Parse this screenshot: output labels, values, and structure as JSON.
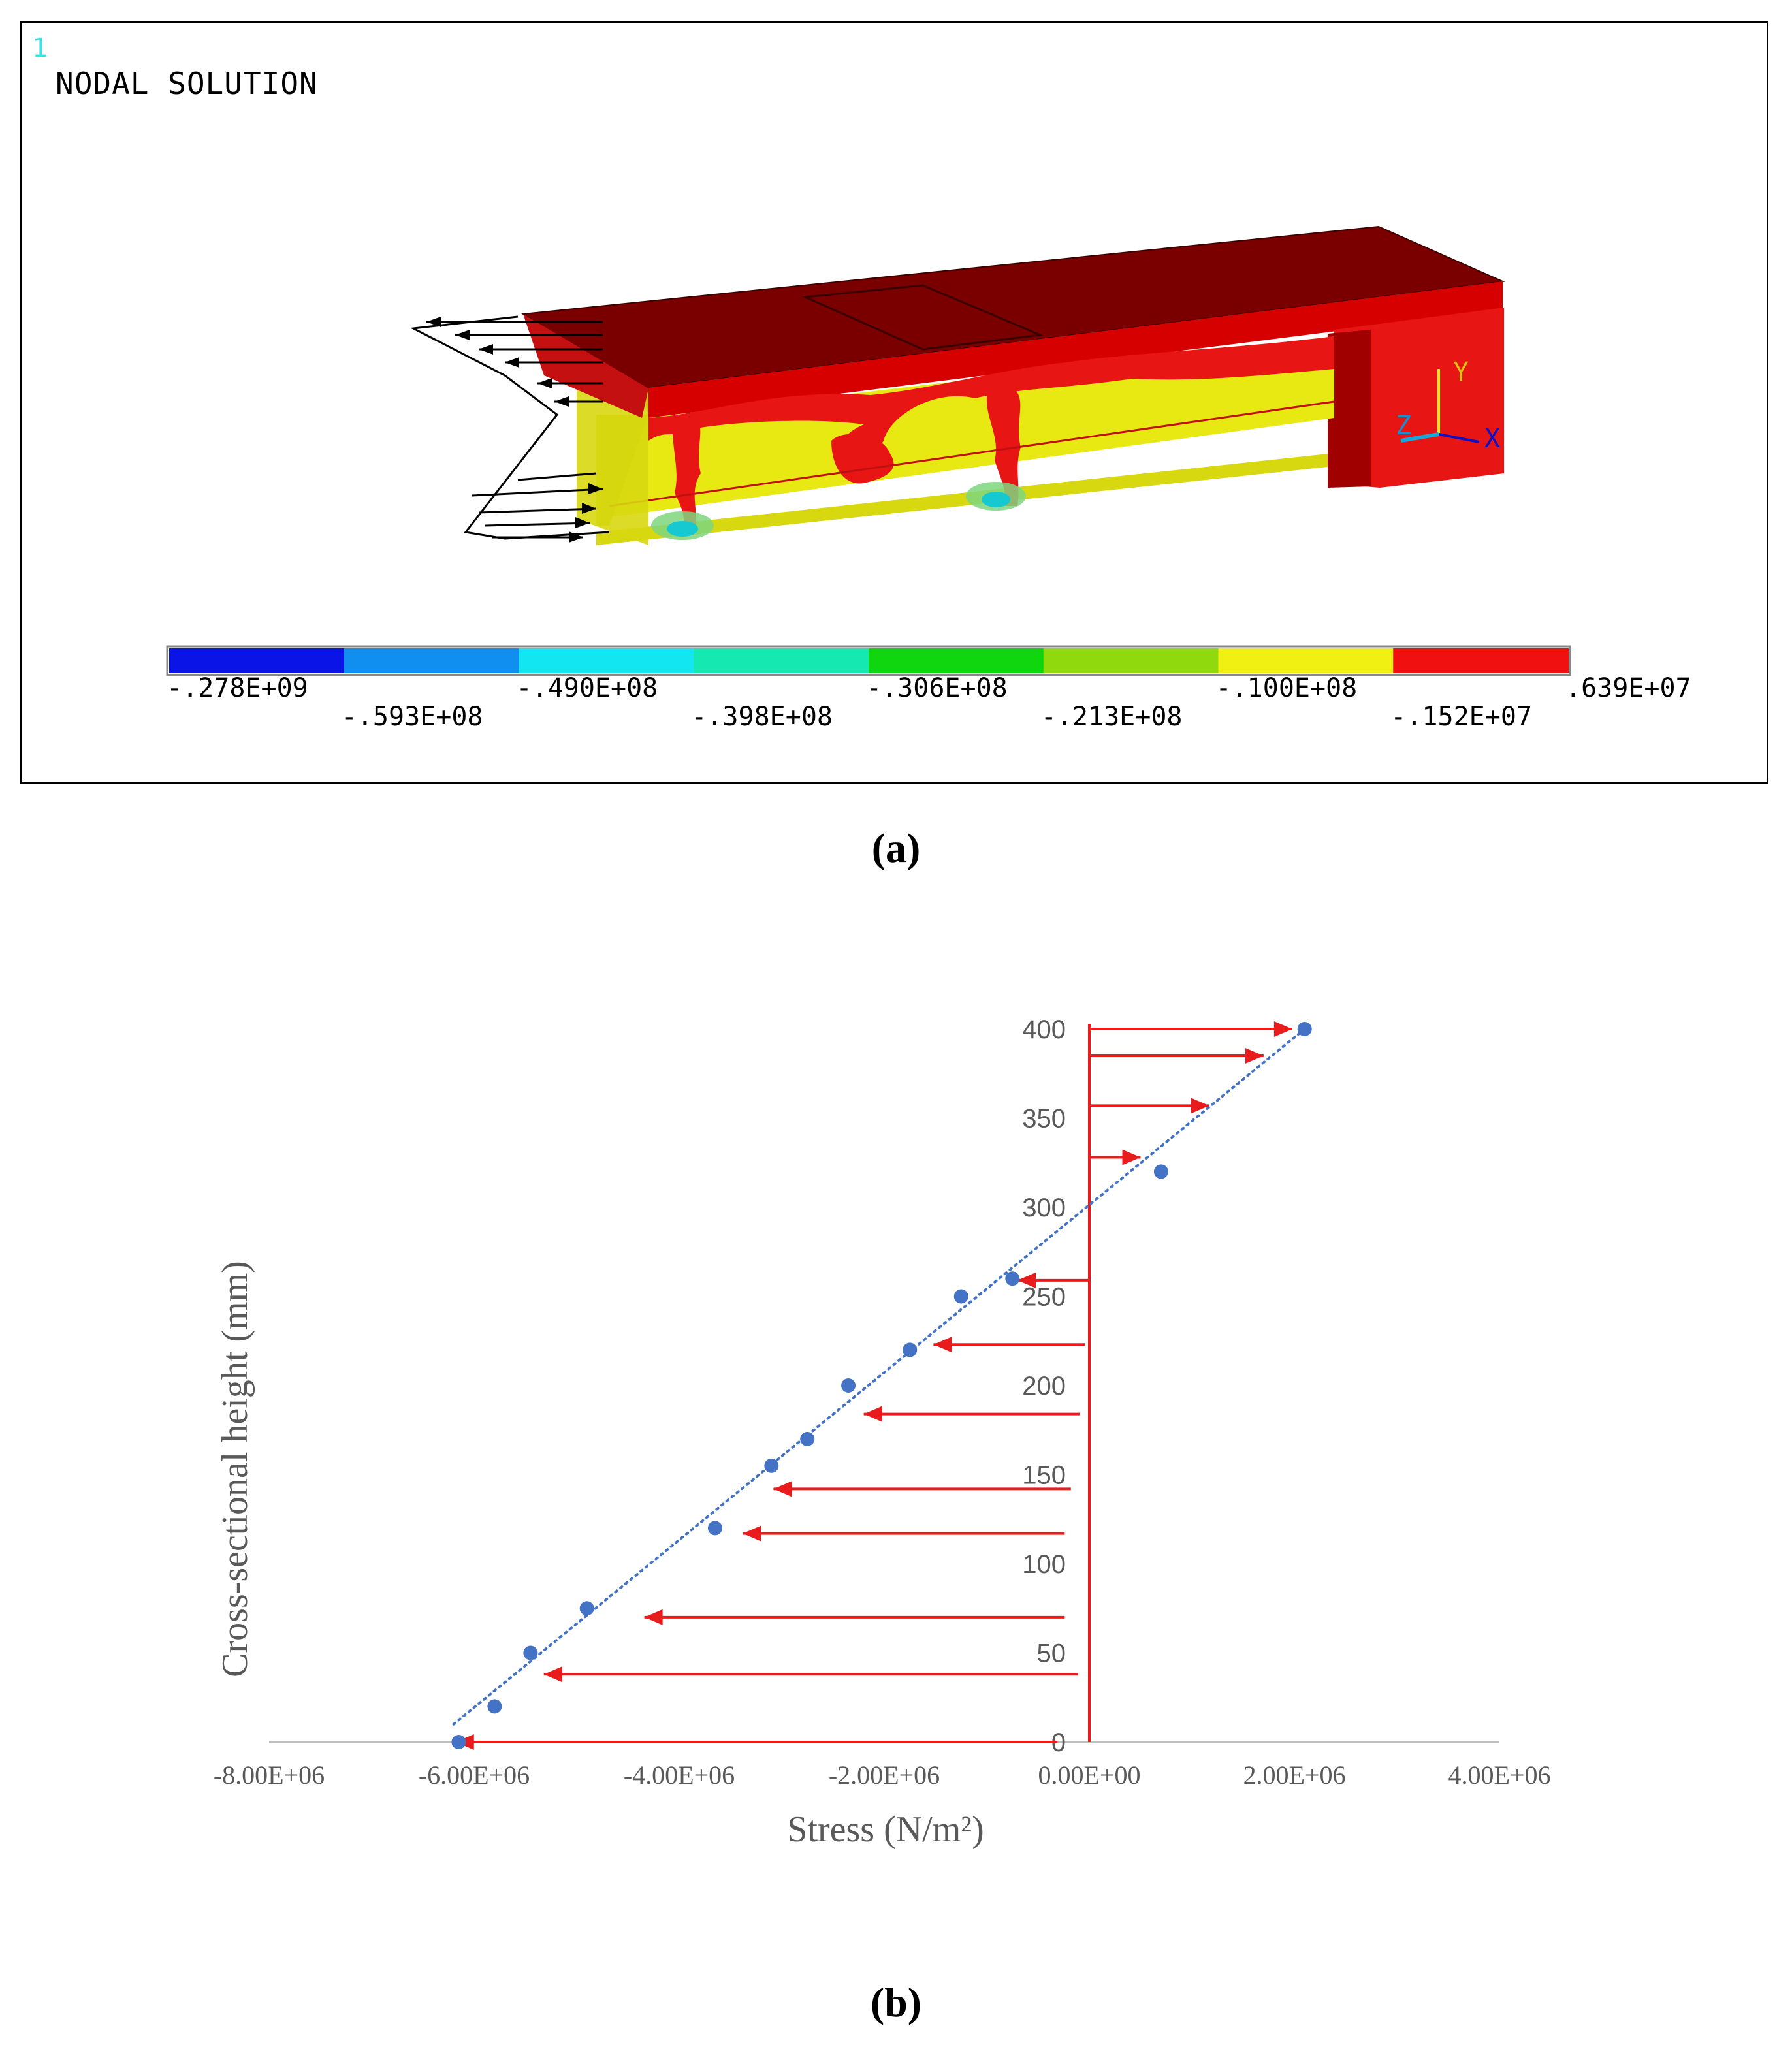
{
  "panel_a": {
    "window_number": "1",
    "title": "NODAL SOLUTION",
    "caption": "(a)",
    "axis_triad": {
      "y": "Y",
      "z": "Z",
      "x": "X"
    },
    "contour_legend": {
      "colors": [
        "#0a14e6",
        "#118ff0",
        "#12e6f0",
        "#16e8b2",
        "#10d60f",
        "#8fd90d",
        "#f0f012",
        "#f01010"
      ],
      "labels_top": [
        "-.278E+09",
        "-.490E+08",
        "-.306E+08",
        "-.100E+08",
        ".639E+07"
      ],
      "labels_bottom": [
        "-.593E+08",
        "-.398E+08",
        "-.213E+08",
        "-.152E+07"
      ]
    }
  },
  "panel_b": {
    "caption": "(b)",
    "chart_data": {
      "type": "scatter",
      "title": "",
      "xlabel": "Stress (N/m²)",
      "ylabel": "Cross-sectional height  (mm)",
      "xlim": [
        -8000000,
        4000000
      ],
      "ylim": [
        0,
        400
      ],
      "x_ticks": [
        "-8.00E+06",
        "-6.00E+06",
        "-4.00E+06",
        "-2.00E+06",
        "0.00E+00",
        "2.00E+06",
        "4.00E+06"
      ],
      "y_ticks": [
        "0",
        "50",
        "100",
        "150",
        "200",
        "250",
        "300",
        "350",
        "400"
      ],
      "series": [
        {
          "color": "#4472c4",
          "points": [
            {
              "x": -6150000,
              "y": 0
            },
            {
              "x": -5800000,
              "y": 20
            },
            {
              "x": -5450000,
              "y": 50
            },
            {
              "x": -4900000,
              "y": 75
            },
            {
              "x": -3650000,
              "y": 120
            },
            {
              "x": -3100000,
              "y": 155
            },
            {
              "x": -2750000,
              "y": 170
            },
            {
              "x": -2350000,
              "y": 200
            },
            {
              "x": -1750000,
              "y": 220
            },
            {
              "x": -1250000,
              "y": 250
            },
            {
              "x": -750000,
              "y": 260
            },
            {
              "x": 700000,
              "y": 320
            },
            {
              "x": 2100000,
              "y": 400
            }
          ]
        }
      ],
      "trendline": {
        "style": "dotted",
        "color": "#4472c4",
        "from": {
          "x": -6200000,
          "y": 10
        },
        "to": {
          "x": 2100000,
          "y": 400
        }
      },
      "stress_arrows": {
        "color": "#e81c1c",
        "items": [
          {
            "y": 400,
            "x_tip": 1980000
          },
          {
            "y": 385,
            "x_tip": 1700000
          },
          {
            "y": 357,
            "x_tip": 1170000
          },
          {
            "y": 328,
            "x_tip": 500000
          },
          {
            "y": 259,
            "x_tip": -700000,
            "x_tail": -10000
          },
          {
            "y": 223,
            "x_tip": -1520000,
            "x_tail": -40000
          },
          {
            "y": 184,
            "x_tip": -2200000,
            "x_tail": -90000
          },
          {
            "y": 142,
            "x_tip": -3080000,
            "x_tail": -180000
          },
          {
            "y": 117,
            "x_tip": -3380000,
            "x_tail": -240000
          },
          {
            "y": 70,
            "x_tip": -4340000,
            "x_tail": -240000
          },
          {
            "y": 38,
            "x_tip": -5320000,
            "x_tail": -110000
          },
          {
            "y": 0,
            "x_tip": -6180000,
            "x_tail": -310000
          }
        ]
      }
    }
  }
}
